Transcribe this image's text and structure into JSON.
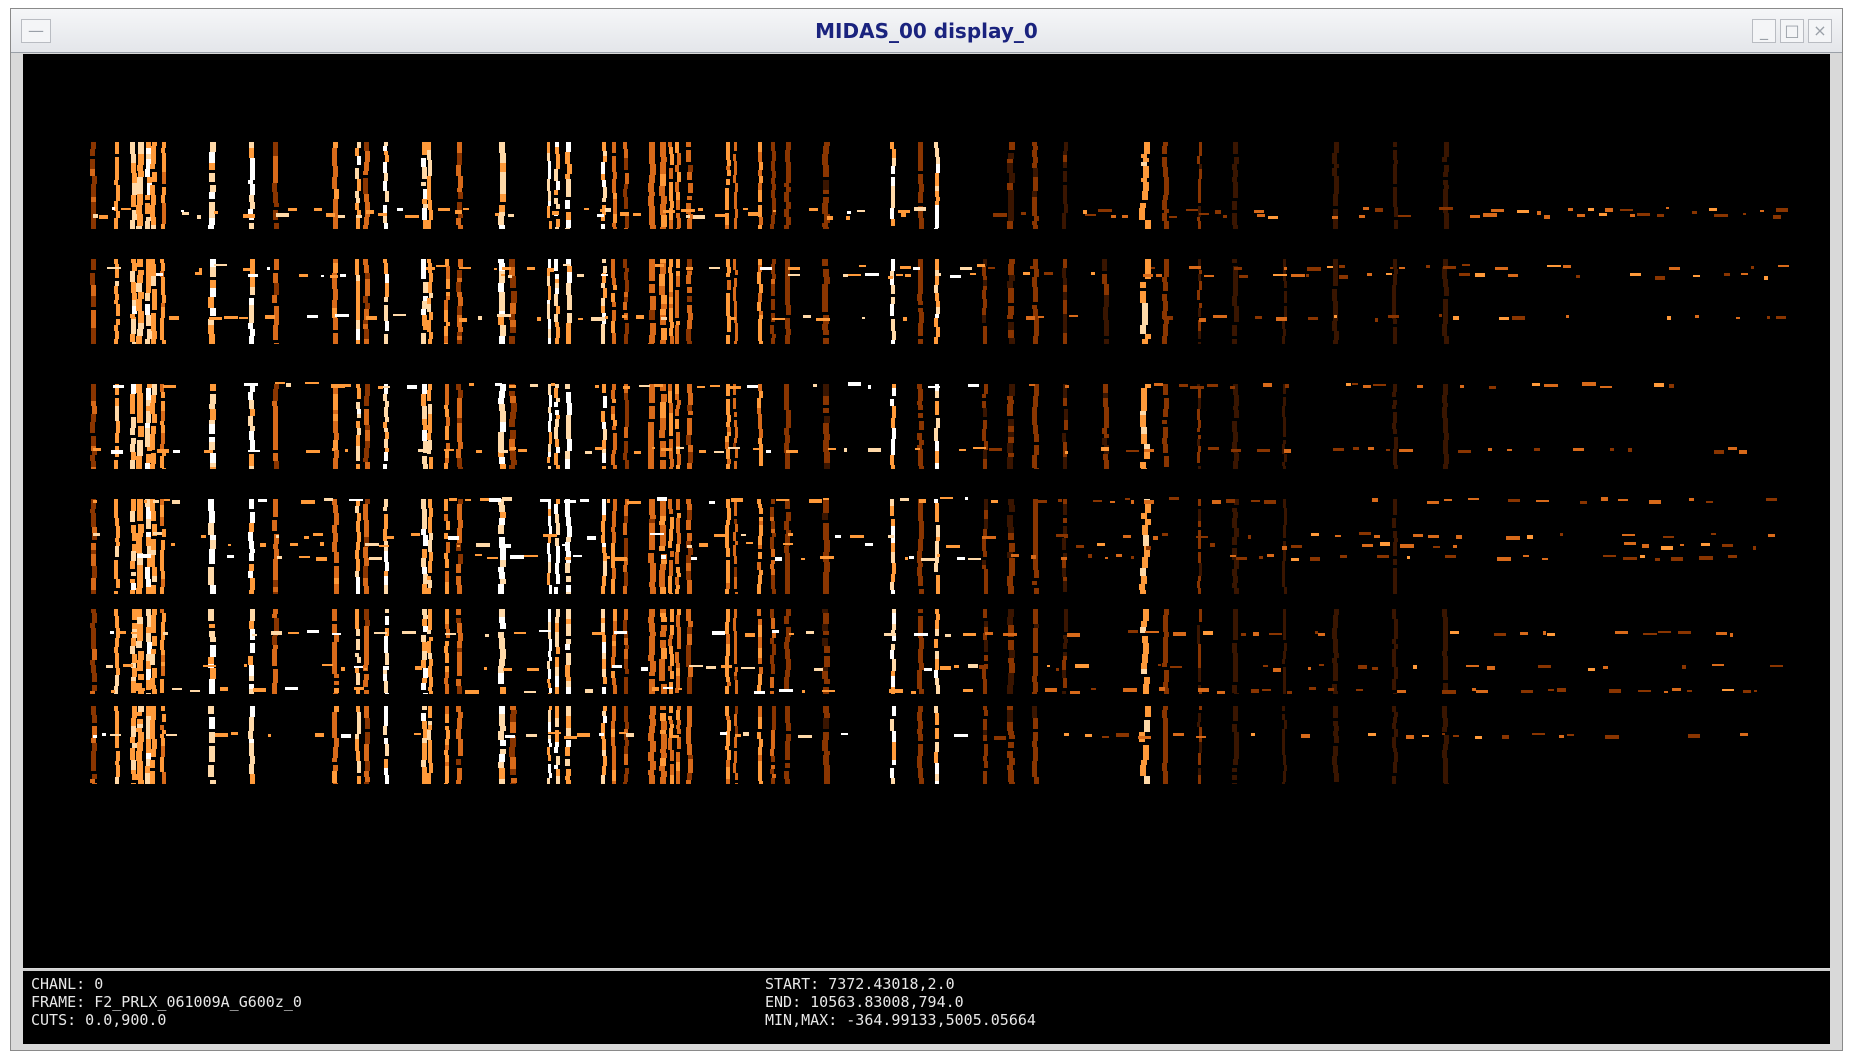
{
  "window": {
    "title": "MIDAS_00 display_0",
    "menu_icon": "window-menu-icon",
    "minimize_icon": "minimize-icon",
    "maximize_icon": "maximize-icon",
    "close_icon": "close-icon"
  },
  "colors": {
    "background": "#000000",
    "colormap": [
      "#000000",
      "#3a1500",
      "#8a3500",
      "#d86a1a",
      "#ff9a3a",
      "#ffd9a8",
      "#ffffff"
    ],
    "title_text": "#1a237e",
    "info_text": "#e8e8e8"
  },
  "status": {
    "chanl": "CHANL: 0",
    "frame": "FRAME: F2_PRLX_061009A_G600z_0",
    "cuts": "CUTS: 0.0,900.0",
    "start": "START: 7372.43018,2.0",
    "end": "END: 10563.83008,794.0",
    "minmax": "MIN,MAX: -364.99133,5005.05664"
  }
}
